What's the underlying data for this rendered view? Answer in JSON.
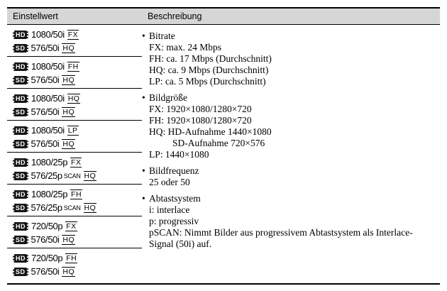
{
  "table": {
    "header": {
      "col1": "Einstellwert",
      "col2": "Beschreibung"
    },
    "rows": [
      {
        "hd": {
          "badge": "HD",
          "value": "1080/50i",
          "quality": "FX"
        },
        "sd": {
          "badge": "SD",
          "value": "576/50i",
          "quality": "HQ"
        }
      },
      {
        "hd": {
          "badge": "HD",
          "value": "1080/50i",
          "quality": "FH"
        },
        "sd": {
          "badge": "SD",
          "value": "576/50i",
          "quality": "HQ"
        }
      },
      {
        "hd": {
          "badge": "HD",
          "value": "1080/50i",
          "quality": "HQ"
        },
        "sd": {
          "badge": "SD",
          "value": "576/50i",
          "quality": "HQ"
        }
      },
      {
        "hd": {
          "badge": "HD",
          "value": "1080/50i",
          "quality": "LP"
        },
        "sd": {
          "badge": "SD",
          "value": "576/50i",
          "quality": "HQ"
        }
      },
      {
        "hd": {
          "badge": "HD",
          "value": "1080/25p",
          "quality": "FX"
        },
        "sd": {
          "badge": "SD",
          "value": "576/25p",
          "scan": "SCAN",
          "quality": "HQ"
        }
      },
      {
        "hd": {
          "badge": "HD",
          "value": "1080/25p",
          "quality": "FH"
        },
        "sd": {
          "badge": "SD",
          "value": "576/25p",
          "scan": "SCAN",
          "quality": "HQ"
        }
      },
      {
        "hd": {
          "badge": "HD",
          "value": "720/50p",
          "quality": "FX"
        },
        "sd": {
          "badge": "SD",
          "value": "576/50i",
          "quality": "HQ"
        }
      },
      {
        "hd": {
          "badge": "HD",
          "value": "720/50p",
          "quality": "FH"
        },
        "sd": {
          "badge": "SD",
          "value": "576/50i",
          "quality": "HQ"
        }
      }
    ],
    "description": {
      "bullet": "•",
      "sections": [
        {
          "title": "Bitrate",
          "lines": [
            "FX: max. 24 Mbps",
            "FH: ca. 17 Mbps (Durchschnitt)",
            "HQ: ca. 9 Mbps (Durchschnitt)",
            "LP: ca. 5 Mbps (Durchschnitt)"
          ]
        },
        {
          "title": "Bildgröße",
          "lines": [
            "FX: 1920×1080/1280×720",
            "FH: 1920×1080/1280×720",
            "HQ: HD-Aufnahme 1440×1080",
            "SD-Aufnahme 720×576",
            "LP: 1440×1080"
          ]
        },
        {
          "title": "Bildfrequenz",
          "lines": [
            "25 oder 50"
          ]
        },
        {
          "title": "Abtastsystem",
          "lines": [
            "i: interlace",
            "p: progressiv",
            "pSCAN: Nimmt Bilder aus progressivem Abtastsystem als Interlace-",
            "Signal (50i) auf."
          ]
        }
      ]
    }
  }
}
